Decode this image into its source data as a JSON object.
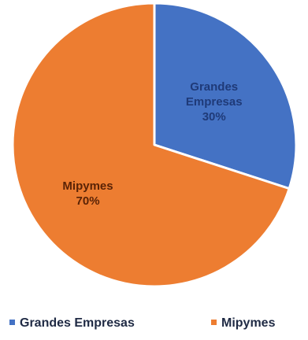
{
  "chart_data": {
    "type": "pie",
    "title": "",
    "start_angle_deg": 0,
    "direction": "clockwise",
    "slices": [
      {
        "label_lines": [
          "Grandes",
          "Empresas",
          "30%"
        ],
        "legend": "Grandes Empresas",
        "value": 30,
        "color": "#4472c4",
        "label_color": "#1f3a78"
      },
      {
        "label_lines": [
          "Mipymes",
          "70%"
        ],
        "legend": "Mipymes",
        "value": 70,
        "color": "#ed7d31",
        "label_color": "#5a2306"
      }
    ],
    "legend_position": "bottom"
  }
}
